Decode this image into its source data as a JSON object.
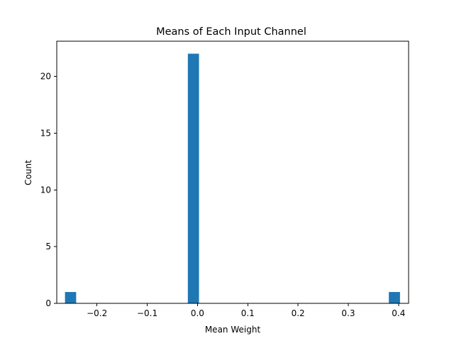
{
  "chart_data": {
    "type": "bar",
    "title": "Means of Each Input Channel",
    "xlabel": "Mean Weight",
    "ylabel": "Count",
    "xlim": [
      -0.28,
      0.42
    ],
    "ylim": [
      0,
      23.1
    ],
    "grid": false,
    "legend": "none",
    "bar_color": "#1f77b4",
    "bin_width": 0.0222,
    "bars": [
      {
        "x": -0.2525,
        "count": 1
      },
      {
        "x": -0.0081,
        "count": 22
      },
      {
        "x": 0.3918,
        "count": 1
      }
    ],
    "x_ticks": [
      {
        "value": -0.2,
        "label": "−0.2"
      },
      {
        "value": -0.1,
        "label": "−0.1"
      },
      {
        "value": 0.0,
        "label": "0.0"
      },
      {
        "value": 0.1,
        "label": "0.1"
      },
      {
        "value": 0.2,
        "label": "0.2"
      },
      {
        "value": 0.3,
        "label": "0.3"
      },
      {
        "value": 0.4,
        "label": "0.4"
      }
    ],
    "y_ticks": [
      {
        "value": 0,
        "label": "0"
      },
      {
        "value": 5,
        "label": "5"
      },
      {
        "value": 10,
        "label": "10"
      },
      {
        "value": 15,
        "label": "15"
      },
      {
        "value": 20,
        "label": "20"
      }
    ]
  }
}
